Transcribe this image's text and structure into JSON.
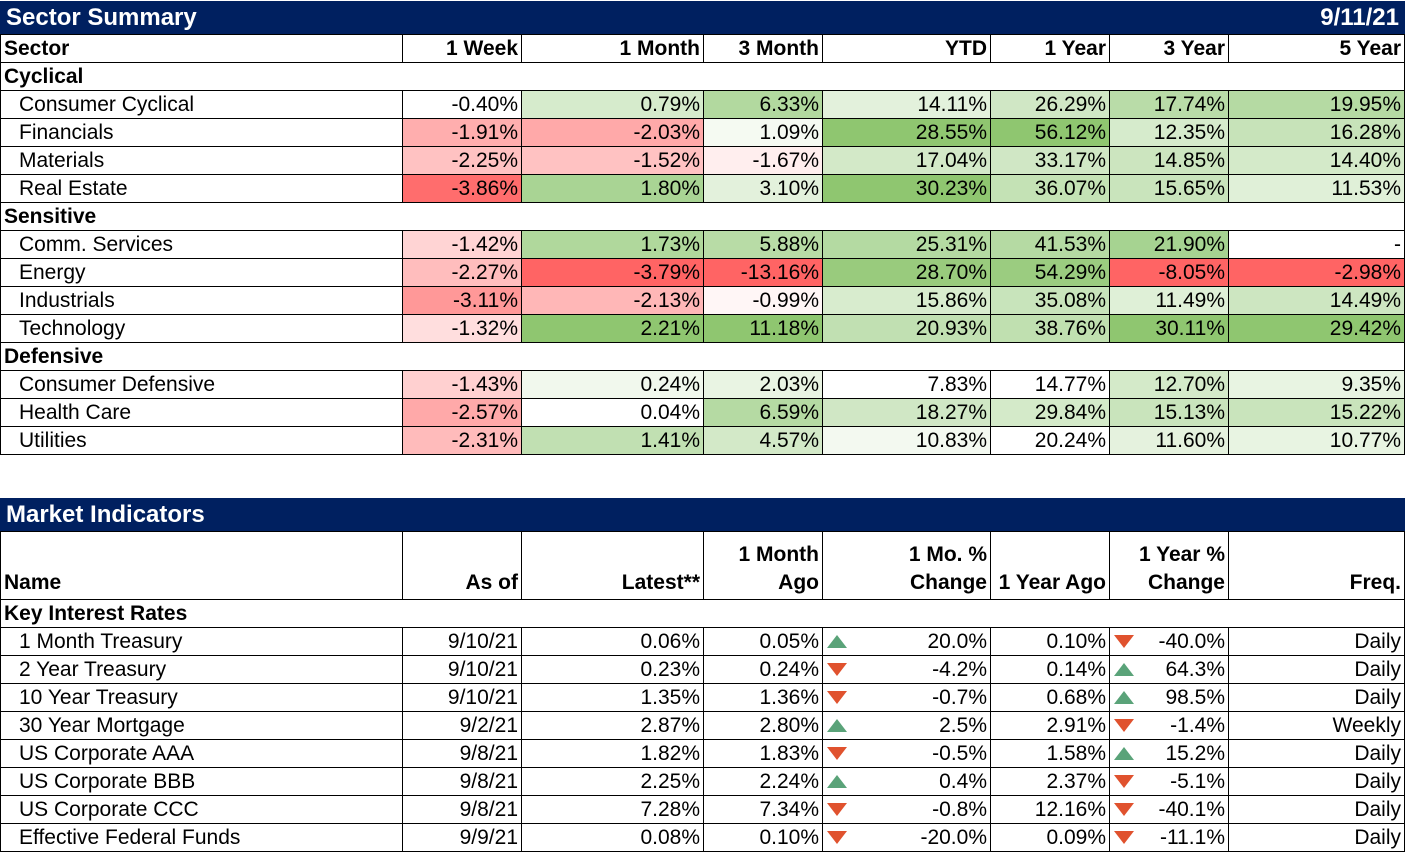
{
  "sector_summary": {
    "title": "Sector Summary",
    "date": "9/11/21",
    "headers": [
      "Sector",
      "1 Week",
      "1 Month",
      "3 Month",
      "YTD",
      "1 Year",
      "3 Year",
      "5 Year"
    ],
    "groups": [
      {
        "name": "Cyclical",
        "rows": [
          {
            "name": "Consumer Cyclical",
            "values": [
              "-0.40%",
              "0.79%",
              "6.33%",
              "14.11%",
              "26.29%",
              "17.74%",
              "19.95%"
            ],
            "colors": [
              "#ffffff",
              "#d6ebcc",
              "#b2d99f",
              "#e3f1dc",
              "#d0e7c5",
              "#b9dca8",
              "#b5daa3"
            ]
          },
          {
            "name": "Financials",
            "values": [
              "-1.91%",
              "-2.03%",
              "1.09%",
              "28.55%",
              "56.12%",
              "12.35%",
              "16.28%"
            ],
            "colors": [
              "#ffaeae",
              "#ffa9a9",
              "#f5faf2",
              "#8fc670",
              "#8fc670",
              "#d6ebcc",
              "#c7e3b9"
            ]
          },
          {
            "name": "Materials",
            "values": [
              "-2.25%",
              "-1.52%",
              "-1.67%",
              "17.04%",
              "33.17%",
              "14.85%",
              "14.40%"
            ],
            "colors": [
              "#ffc2c2",
              "#ffc2c2",
              "#ffeeee",
              "#d3e9c8",
              "#d0e7c5",
              "#cce5bf",
              "#d4eac9"
            ]
          },
          {
            "name": "Real Estate",
            "values": [
              "-3.86%",
              "1.80%",
              "3.10%",
              "30.23%",
              "36.07%",
              "15.65%",
              "11.53%"
            ],
            "colors": [
              "#ff6d6d",
              "#a9d494",
              "#e3f1dc",
              "#8fc670",
              "#c4e2b5",
              "#c9e4bc",
              "#e0f0d8"
            ]
          }
        ]
      },
      {
        "name": "Sensitive",
        "rows": [
          {
            "name": "Comm. Services",
            "values": [
              "-1.42%",
              "1.73%",
              "5.88%",
              "25.31%",
              "41.53%",
              "21.90%",
              "-"
            ],
            "colors": [
              "#ffd4d4",
              "#b0d89c",
              "#b8dca6",
              "#b4daa2",
              "#b5daa3",
              "#a6d391",
              "#ffffff"
            ]
          },
          {
            "name": "Energy",
            "values": [
              "-2.27%",
              "-3.79%",
              "-13.16%",
              "28.70%",
              "54.29%",
              "-8.05%",
              "-2.98%"
            ],
            "colors": [
              "#ffbdbd",
              "#ff6464",
              "#ff6464",
              "#99cb7d",
              "#9bcc80",
              "#ff6464",
              "#ff6464"
            ]
          },
          {
            "name": "Industrials",
            "values": [
              "-3.11%",
              "-2.13%",
              "-0.99%",
              "15.86%",
              "35.08%",
              "11.49%",
              "14.49%"
            ],
            "colors": [
              "#ff9898",
              "#ffb7b7",
              "#fff6f6",
              "#d8ecce",
              "#c8e4bb",
              "#dff0d7",
              "#cde6c1"
            ]
          },
          {
            "name": "Technology",
            "values": [
              "-1.32%",
              "2.21%",
              "11.18%",
              "20.93%",
              "38.76%",
              "30.11%",
              "29.42%"
            ],
            "colors": [
              "#ffdede",
              "#8fc670",
              "#8fc670",
              "#c1e0b2",
              "#c0e0b0",
              "#8fc670",
              "#8fc670"
            ]
          }
        ]
      },
      {
        "name": "Defensive",
        "rows": [
          {
            "name": "Consumer Defensive",
            "values": [
              "-1.43%",
              "0.24%",
              "2.03%",
              "7.83%",
              "14.77%",
              "12.70%",
              "9.35%"
            ],
            "colors": [
              "#ffd0d0",
              "#f1f8ed",
              "#e9f4e3",
              "#ffffff",
              "#ffffff",
              "#d4eac9",
              "#e8f4e2"
            ]
          },
          {
            "name": "Health Care",
            "values": [
              "-2.57%",
              "0.04%",
              "6.59%",
              "18.27%",
              "29.84%",
              "15.13%",
              "15.22%"
            ],
            "colors": [
              "#ffa9a9",
              "#ffffff",
              "#b5daa3",
              "#d0e7c5",
              "#d4eac9",
              "#c9e4bc",
              "#c9e4bc"
            ]
          },
          {
            "name": "Utilities",
            "values": [
              "-2.31%",
              "1.41%",
              "4.57%",
              "10.83%",
              "20.24%",
              "11.60%",
              "10.77%"
            ],
            "colors": [
              "#ffbbbb",
              "#c1e0b2",
              "#d3e9c8",
              "#f3f9f0",
              "#ffffff",
              "#e5f2de",
              "#e8f4e2"
            ]
          }
        ]
      }
    ]
  },
  "market_indicators": {
    "title": "Market Indicators",
    "headers": [
      [
        "",
        "Name"
      ],
      [
        "",
        "As of"
      ],
      [
        "",
        "Latest**"
      ],
      [
        "1 Month",
        "Ago"
      ],
      [
        "1 Mo. %",
        "Change"
      ],
      [
        "",
        "1 Year Ago"
      ],
      [
        "1 Year %",
        "Change"
      ],
      [
        "",
        "Freq."
      ]
    ],
    "group": "Key Interest Rates",
    "rows": [
      {
        "name": "1 Month Treasury",
        "as_of": "9/10/21",
        "latest": "0.06%",
        "month_ago": "0.05%",
        "mo_dir": "up",
        "mo_change": "20.0%",
        "year_ago": "0.10%",
        "yr_dir": "down",
        "yr_change": "-40.0%",
        "freq": "Daily"
      },
      {
        "name": "2 Year Treasury",
        "as_of": "9/10/21",
        "latest": "0.23%",
        "month_ago": "0.24%",
        "mo_dir": "down",
        "mo_change": "-4.2%",
        "year_ago": "0.14%",
        "yr_dir": "up",
        "yr_change": "64.3%",
        "freq": "Daily"
      },
      {
        "name": "10 Year Treasury",
        "as_of": "9/10/21",
        "latest": "1.35%",
        "month_ago": "1.36%",
        "mo_dir": "down",
        "mo_change": "-0.7%",
        "year_ago": "0.68%",
        "yr_dir": "up",
        "yr_change": "98.5%",
        "freq": "Daily"
      },
      {
        "name": "30 Year Mortgage",
        "as_of": "9/2/21",
        "latest": "2.87%",
        "month_ago": "2.80%",
        "mo_dir": "up",
        "mo_change": "2.5%",
        "year_ago": "2.91%",
        "yr_dir": "down",
        "yr_change": "-1.4%",
        "freq": "Weekly"
      },
      {
        "name": "US Corporate AAA",
        "as_of": "9/8/21",
        "latest": "1.82%",
        "month_ago": "1.83%",
        "mo_dir": "down",
        "mo_change": "-0.5%",
        "year_ago": "1.58%",
        "yr_dir": "up",
        "yr_change": "15.2%",
        "freq": "Daily"
      },
      {
        "name": "US Corporate BBB",
        "as_of": "9/8/21",
        "latest": "2.25%",
        "month_ago": "2.24%",
        "mo_dir": "up",
        "mo_change": "0.4%",
        "year_ago": "2.37%",
        "yr_dir": "down",
        "yr_change": "-5.1%",
        "freq": "Daily"
      },
      {
        "name": "US Corporate CCC",
        "as_of": "9/8/21",
        "latest": "7.28%",
        "month_ago": "7.34%",
        "mo_dir": "down",
        "mo_change": "-0.8%",
        "year_ago": "12.16%",
        "yr_dir": "down",
        "yr_change": "-40.1%",
        "freq": "Daily"
      },
      {
        "name": "Effective Federal Funds",
        "as_of": "9/9/21",
        "latest": "0.08%",
        "month_ago": "0.10%",
        "mo_dir": "down",
        "mo_change": "-20.0%",
        "year_ago": "0.09%",
        "yr_dir": "down",
        "yr_change": "-11.1%",
        "freq": "Daily"
      }
    ]
  }
}
